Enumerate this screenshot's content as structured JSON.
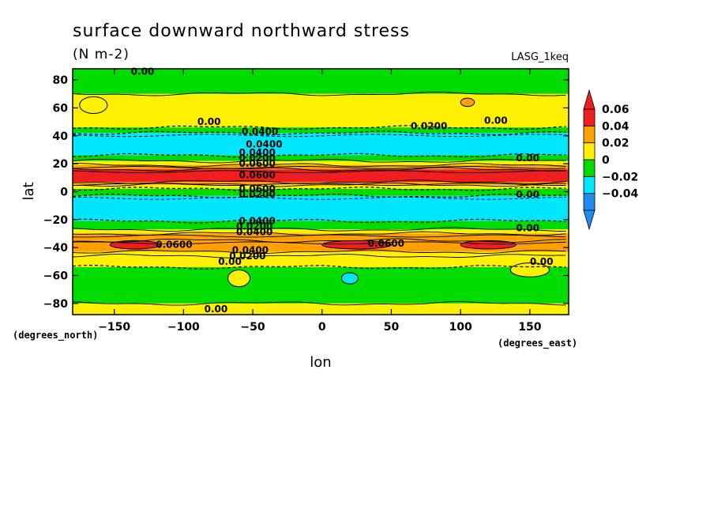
{
  "chart_data": {
    "type": "heatmap",
    "title": "surface downward northward stress",
    "units": "(N m-2)",
    "dataset_label": "LASG_1keq",
    "xlabel": "lon",
    "ylabel": "lat",
    "x_unit_label": "(degrees_east)",
    "y_unit_label": "(degrees_north)",
    "xlim": [
      -180,
      178
    ],
    "ylim": [
      -88,
      88
    ],
    "x_ticks": [
      -150,
      -100,
      -50,
      0,
      50,
      100,
      150
    ],
    "x_tick_labels": [
      "−150",
      "−100",
      "−50",
      "0",
      "50",
      "100",
      "150"
    ],
    "y_ticks": [
      -80,
      -60,
      -40,
      -20,
      0,
      20,
      40,
      60,
      80
    ],
    "y_tick_labels": [
      "−80",
      "−60",
      "−40",
      "−20",
      "0",
      "20",
      "40",
      "60",
      "80"
    ],
    "colorbar": {
      "levels": [
        -0.06,
        -0.04,
        -0.02,
        0,
        0.02,
        0.04,
        0.06
      ],
      "labels": [
        "0.06",
        "0.04",
        "0.02",
        "0",
        "−0.02",
        "−0.04"
      ],
      "colors": [
        "#1e8cf0",
        "#00e6ff",
        "#00dc00",
        "#fff000",
        "#ffa000",
        "#f01e1e"
      ],
      "extend": "both"
    },
    "zonal_bands": [
      {
        "lat_from": 88,
        "lat_to": 70,
        "value": -0.01
      },
      {
        "lat_from": 70,
        "lat_to": 46,
        "value": 0.01
      },
      {
        "lat_from": 46,
        "lat_to": 42,
        "value": -0.01
      },
      {
        "lat_from": 42,
        "lat_to": 26,
        "value": -0.03
      },
      {
        "lat_from": 26,
        "lat_to": 22,
        "value": -0.01
      },
      {
        "lat_from": 22,
        "lat_to": 19,
        "value": 0.01
      },
      {
        "lat_from": 19,
        "lat_to": 16,
        "value": 0.03
      },
      {
        "lat_from": 16,
        "lat_to": 7,
        "value": 0.05
      },
      {
        "lat_from": 7,
        "lat_to": 5,
        "value": 0.03
      },
      {
        "lat_from": 5,
        "lat_to": 2,
        "value": 0.01
      },
      {
        "lat_from": 2,
        "lat_to": -3,
        "value": -0.01
      },
      {
        "lat_from": -3,
        "lat_to": -21,
        "value": -0.03
      },
      {
        "lat_from": -21,
        "lat_to": -27,
        "value": -0.01
      },
      {
        "lat_from": -27,
        "lat_to": -30,
        "value": 0.01
      },
      {
        "lat_from": -30,
        "lat_to": -35,
        "value": 0.03
      },
      {
        "lat_from": -35,
        "lat_to": -43,
        "value": 0.03
      },
      {
        "lat_from": -43,
        "lat_to": -46,
        "value": 0.01
      },
      {
        "lat_from": -46,
        "lat_to": -54,
        "value": 0.01
      },
      {
        "lat_from": -54,
        "lat_to": -80,
        "value": -0.01
      },
      {
        "lat_from": -80,
        "lat_to": -88,
        "value": 0.01
      }
    ],
    "patches": [
      {
        "lon": -165,
        "lat": 62,
        "rx": 10,
        "ry": 6,
        "value": 0.01
      },
      {
        "lon": 105,
        "lat": 64,
        "rx": 5,
        "ry": 3,
        "value": 0.03
      },
      {
        "lon": -135,
        "lat": -38,
        "rx": 18,
        "ry": 3,
        "value": 0.05
      },
      {
        "lon": 25,
        "lat": -38,
        "rx": 25,
        "ry": 3,
        "value": 0.05
      },
      {
        "lon": 120,
        "lat": -38,
        "rx": 20,
        "ry": 3,
        "value": 0.05
      },
      {
        "lon": 20,
        "lat": -62,
        "rx": 6,
        "ry": 4,
        "value": -0.03
      },
      {
        "lon": -60,
        "lat": -62,
        "rx": 8,
        "ry": 6,
        "value": 0.01
      },
      {
        "lon": 150,
        "lat": -56,
        "rx": 14,
        "ry": 5,
        "value": 0.01
      }
    ],
    "contour_labels": [
      {
        "text": "0.00",
        "lon": -138,
        "lat": 86
      },
      {
        "text": "0.00",
        "lon": -90,
        "lat": 50
      },
      {
        "text": "0.0400",
        "lon": -58,
        "lat": 43
      },
      {
        "text": "0.0400",
        "lon": -55,
        "lat": 34
      },
      {
        "text": "0.0200",
        "lon": 64,
        "lat": 47
      },
      {
        "text": "0.00",
        "lon": 117,
        "lat": 51
      },
      {
        "text": "0.00",
        "lon": 140,
        "lat": 24
      },
      {
        "text": "0.0600",
        "lon": -60,
        "lat": 20
      },
      {
        "text": "0.0600",
        "lon": -60,
        "lat": 12
      },
      {
        "text": "0.0400",
        "lon": -60,
        "lat": 28
      },
      {
        "text": "0.0200",
        "lon": -60,
        "lat": 24
      },
      {
        "text": "0.0600",
        "lon": -60,
        "lat": 2
      },
      {
        "text": "0.0200",
        "lon": -60,
        "lat": -2
      },
      {
        "text": "0.00",
        "lon": 140,
        "lat": -2
      },
      {
        "text": "0.0400",
        "lon": -60,
        "lat": -21
      },
      {
        "text": "0.0200",
        "lon": -62,
        "lat": -25
      },
      {
        "text": "0.0400",
        "lon": -62,
        "lat": -29
      },
      {
        "text": "0.00",
        "lon": 140,
        "lat": -26
      },
      {
        "text": "0.0600",
        "lon": -120,
        "lat": -38
      },
      {
        "text": "0.0600",
        "lon": 33,
        "lat": -37
      },
      {
        "text": "0.0400",
        "lon": -65,
        "lat": -42
      },
      {
        "text": "0.0200",
        "lon": -67,
        "lat": -46
      },
      {
        "text": "0.00",
        "lon": -75,
        "lat": -50
      },
      {
        "text": "0.00",
        "lon": 150,
        "lat": -50
      },
      {
        "text": "0.00",
        "lon": -85,
        "lat": -84
      }
    ]
  }
}
